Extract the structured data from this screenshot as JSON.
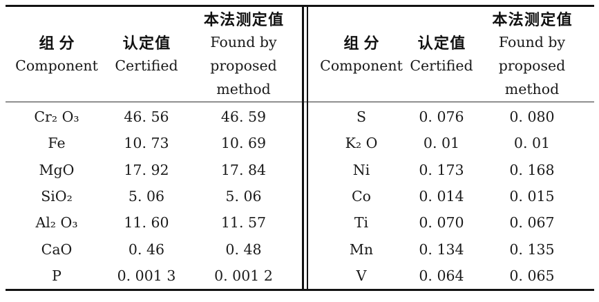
{
  "colors": {
    "background": "#ffffff",
    "text": "#1a1a1a",
    "rule": "#121212"
  },
  "table": {
    "header": {
      "component_zh": "组分",
      "component_en": "Component",
      "certified_zh": "认定值",
      "certified_en": "Certified",
      "found_zh": "本法测定值",
      "found_en_line1": "Found by",
      "found_en_line2": "proposed",
      "found_en_line3": "method"
    },
    "left": {
      "rows": [
        {
          "component": "Cr₂ O₃",
          "certified": "46. 56",
          "found": "46. 59"
        },
        {
          "component": "Fe",
          "certified": "10. 73",
          "found": "10. 69"
        },
        {
          "component": "MgO",
          "certified": "17. 92",
          "found": "17. 84"
        },
        {
          "component": "SiO₂",
          "certified": "5. 06",
          "found": "5. 06"
        },
        {
          "component": "Al₂ O₃",
          "certified": "11. 60",
          "found": "11. 57"
        },
        {
          "component": "CaO",
          "certified": "0. 46",
          "found": "0. 48"
        },
        {
          "component": "P",
          "certified": "0. 001 3",
          "found": "0. 001 2"
        }
      ]
    },
    "right": {
      "rows": [
        {
          "component": "S",
          "certified": "0. 076",
          "found": "0. 080"
        },
        {
          "component": "K₂ O",
          "certified": "0. 01",
          "found": "0. 01"
        },
        {
          "component": "Ni",
          "certified": "0. 173",
          "found": "0. 168"
        },
        {
          "component": "Co",
          "certified": "0. 014",
          "found": "0. 015"
        },
        {
          "component": "Ti",
          "certified": "0. 070",
          "found": "0. 067"
        },
        {
          "component": "Mn",
          "certified": "0. 134",
          "found": "0. 135"
        },
        {
          "component": "V",
          "certified": "0. 064",
          "found": "0. 065"
        }
      ]
    }
  }
}
